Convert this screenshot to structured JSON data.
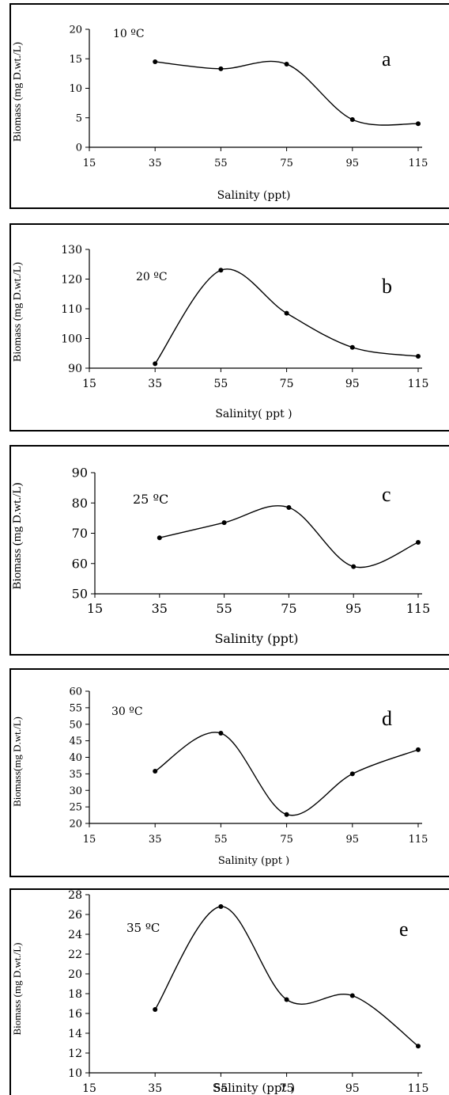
{
  "chart_data": [
    {
      "type": "line",
      "panel_letter": "a",
      "annotation": "10 ºC",
      "xlabel": "Salinity (ppt)",
      "ylabel": "Biomass (mg D.wt./L)",
      "xlim": [
        15,
        115
      ],
      "ylim": [
        0,
        20
      ],
      "xticks": [
        "15",
        "35",
        "55",
        "75",
        "95",
        "115"
      ],
      "yticks": [
        "0",
        "5",
        "10",
        "15",
        "20"
      ],
      "x": [
        35,
        55,
        75,
        95,
        115
      ],
      "values": [
        14.5,
        13.3,
        14.1,
        4.7,
        4.0
      ],
      "smooth": true,
      "markers": true
    },
    {
      "type": "line",
      "panel_letter": "b",
      "annotation": "20 ºC",
      "xlabel": "Salinity( ppt )",
      "ylabel": "Biomass (mg D.wt./L)",
      "xlim": [
        15,
        115
      ],
      "ylim": [
        90,
        130
      ],
      "xticks": [
        "15",
        "35",
        "55",
        "75",
        "95",
        "115"
      ],
      "yticks": [
        "90",
        "100",
        "110",
        "120",
        "130"
      ],
      "x": [
        35,
        55,
        75,
        95,
        115
      ],
      "values": [
        91.5,
        123,
        108.5,
        97,
        94
      ],
      "smooth": true,
      "markers": true
    },
    {
      "type": "line",
      "panel_letter": "c",
      "annotation": "25 ºC",
      "xlabel": "Salinity (ppt)",
      "ylabel": "Biomass (mg D.wt./L)",
      "xlim": [
        15,
        115
      ],
      "ylim": [
        50,
        90
      ],
      "xticks": [
        "15",
        "35",
        "55",
        "75",
        "95",
        "115"
      ],
      "yticks": [
        "50",
        "60",
        "70",
        "80",
        "90"
      ],
      "x": [
        35,
        55,
        75,
        95,
        115
      ],
      "values": [
        68.5,
        73.5,
        78.5,
        59,
        67
      ],
      "smooth": true,
      "markers": true
    },
    {
      "type": "line",
      "panel_letter": "d",
      "annotation": "30 ºC",
      "xlabel": "Salinity (ppt )",
      "ylabel": "Biomass(mg D.wt./L)",
      "xlim": [
        15,
        115
      ],
      "ylim": [
        20,
        60
      ],
      "xticks": [
        "15",
        "35",
        "55",
        "75",
        "95",
        "115"
      ],
      "yticks": [
        "20",
        "25",
        "30",
        "35",
        "40",
        "45",
        "50",
        "55",
        "60"
      ],
      "x": [
        35,
        55,
        75,
        95,
        115
      ],
      "values": [
        35.8,
        47.3,
        22.7,
        35,
        42.3
      ],
      "smooth": true,
      "markers": true
    },
    {
      "type": "line",
      "panel_letter": "e",
      "annotation": "35 ºC",
      "xlabel": "Salinity (ppt )",
      "ylabel": "Biomass (mg D.wt./L)",
      "xlim": [
        15,
        115
      ],
      "ylim": [
        10,
        28
      ],
      "xticks": [
        "15",
        "35",
        "55",
        "75",
        "95",
        "115"
      ],
      "yticks": [
        "10",
        "12",
        "14",
        "16",
        "18",
        "20",
        "22",
        "24",
        "26",
        "28"
      ],
      "x": [
        35,
        55,
        75,
        95,
        115
      ],
      "values": [
        16.4,
        26.8,
        17.4,
        17.8,
        12.7
      ],
      "smooth": true,
      "markers": true
    }
  ]
}
